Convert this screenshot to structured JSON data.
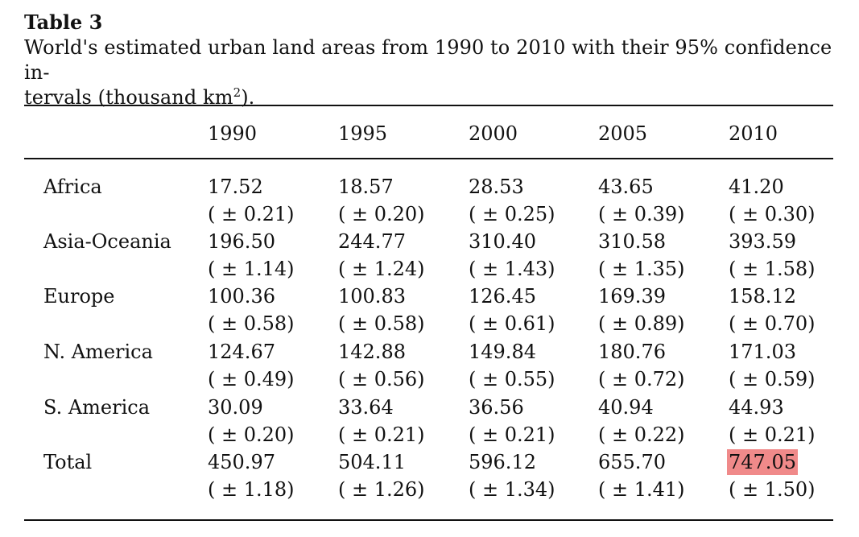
{
  "table_label": "Table 3",
  "caption": {
    "line1": "World's estimated urban land areas from 1990 to 2010 with their 95% confidence in-",
    "line2_before": "tervals (thousand km",
    "line2_sup": "2",
    "line2_after": ")."
  },
  "columns": [
    "1990",
    "1995",
    "2000",
    "2005",
    "2010"
  ],
  "rows": [
    {
      "label": "Africa",
      "values": [
        "17.52",
        "18.57",
        "28.53",
        "43.65",
        "41.20"
      ],
      "intervals": [
        "( ± 0.21)",
        "( ± 0.20)",
        "( ± 0.25)",
        "( ± 0.39)",
        "( ± 0.30)"
      ]
    },
    {
      "label": "Asia-Oceania",
      "values": [
        "196.50",
        "244.77",
        "310.40",
        "310.58",
        "393.59"
      ],
      "intervals": [
        "( ± 1.14)",
        "( ± 1.24)",
        "( ± 1.43)",
        "( ± 1.35)",
        "( ± 1.58)"
      ]
    },
    {
      "label": "Europe",
      "values": [
        "100.36",
        "100.83",
        "126.45",
        "169.39",
        "158.12"
      ],
      "intervals": [
        "( ± 0.58)",
        "( ± 0.58)",
        "( ± 0.61)",
        "( ± 0.89)",
        "( ± 0.70)"
      ]
    },
    {
      "label": "N. America",
      "values": [
        "124.67",
        "142.88",
        "149.84",
        "180.76",
        "171.03"
      ],
      "intervals": [
        "( ± 0.49)",
        "( ± 0.56)",
        "( ± 0.55)",
        "( ± 0.72)",
        "( ± 0.59)"
      ]
    },
    {
      "label": "S. America",
      "values": [
        "30.09",
        "33.64",
        "36.56",
        "40.94",
        "44.93"
      ],
      "intervals": [
        "( ± 0.20)",
        "( ± 0.21)",
        "( ± 0.21)",
        "( ± 0.22)",
        "( ± 0.21)"
      ]
    },
    {
      "label": "Total",
      "values": [
        "450.97",
        "504.11",
        "596.12",
        "655.70",
        "747.05"
      ],
      "intervals": [
        "( ± 1.18)",
        "( ± 1.26)",
        "( ± 1.34)",
        "( ± 1.41)",
        "( ± 1.50)"
      ]
    }
  ],
  "highlight_color": "#f08a8a"
}
